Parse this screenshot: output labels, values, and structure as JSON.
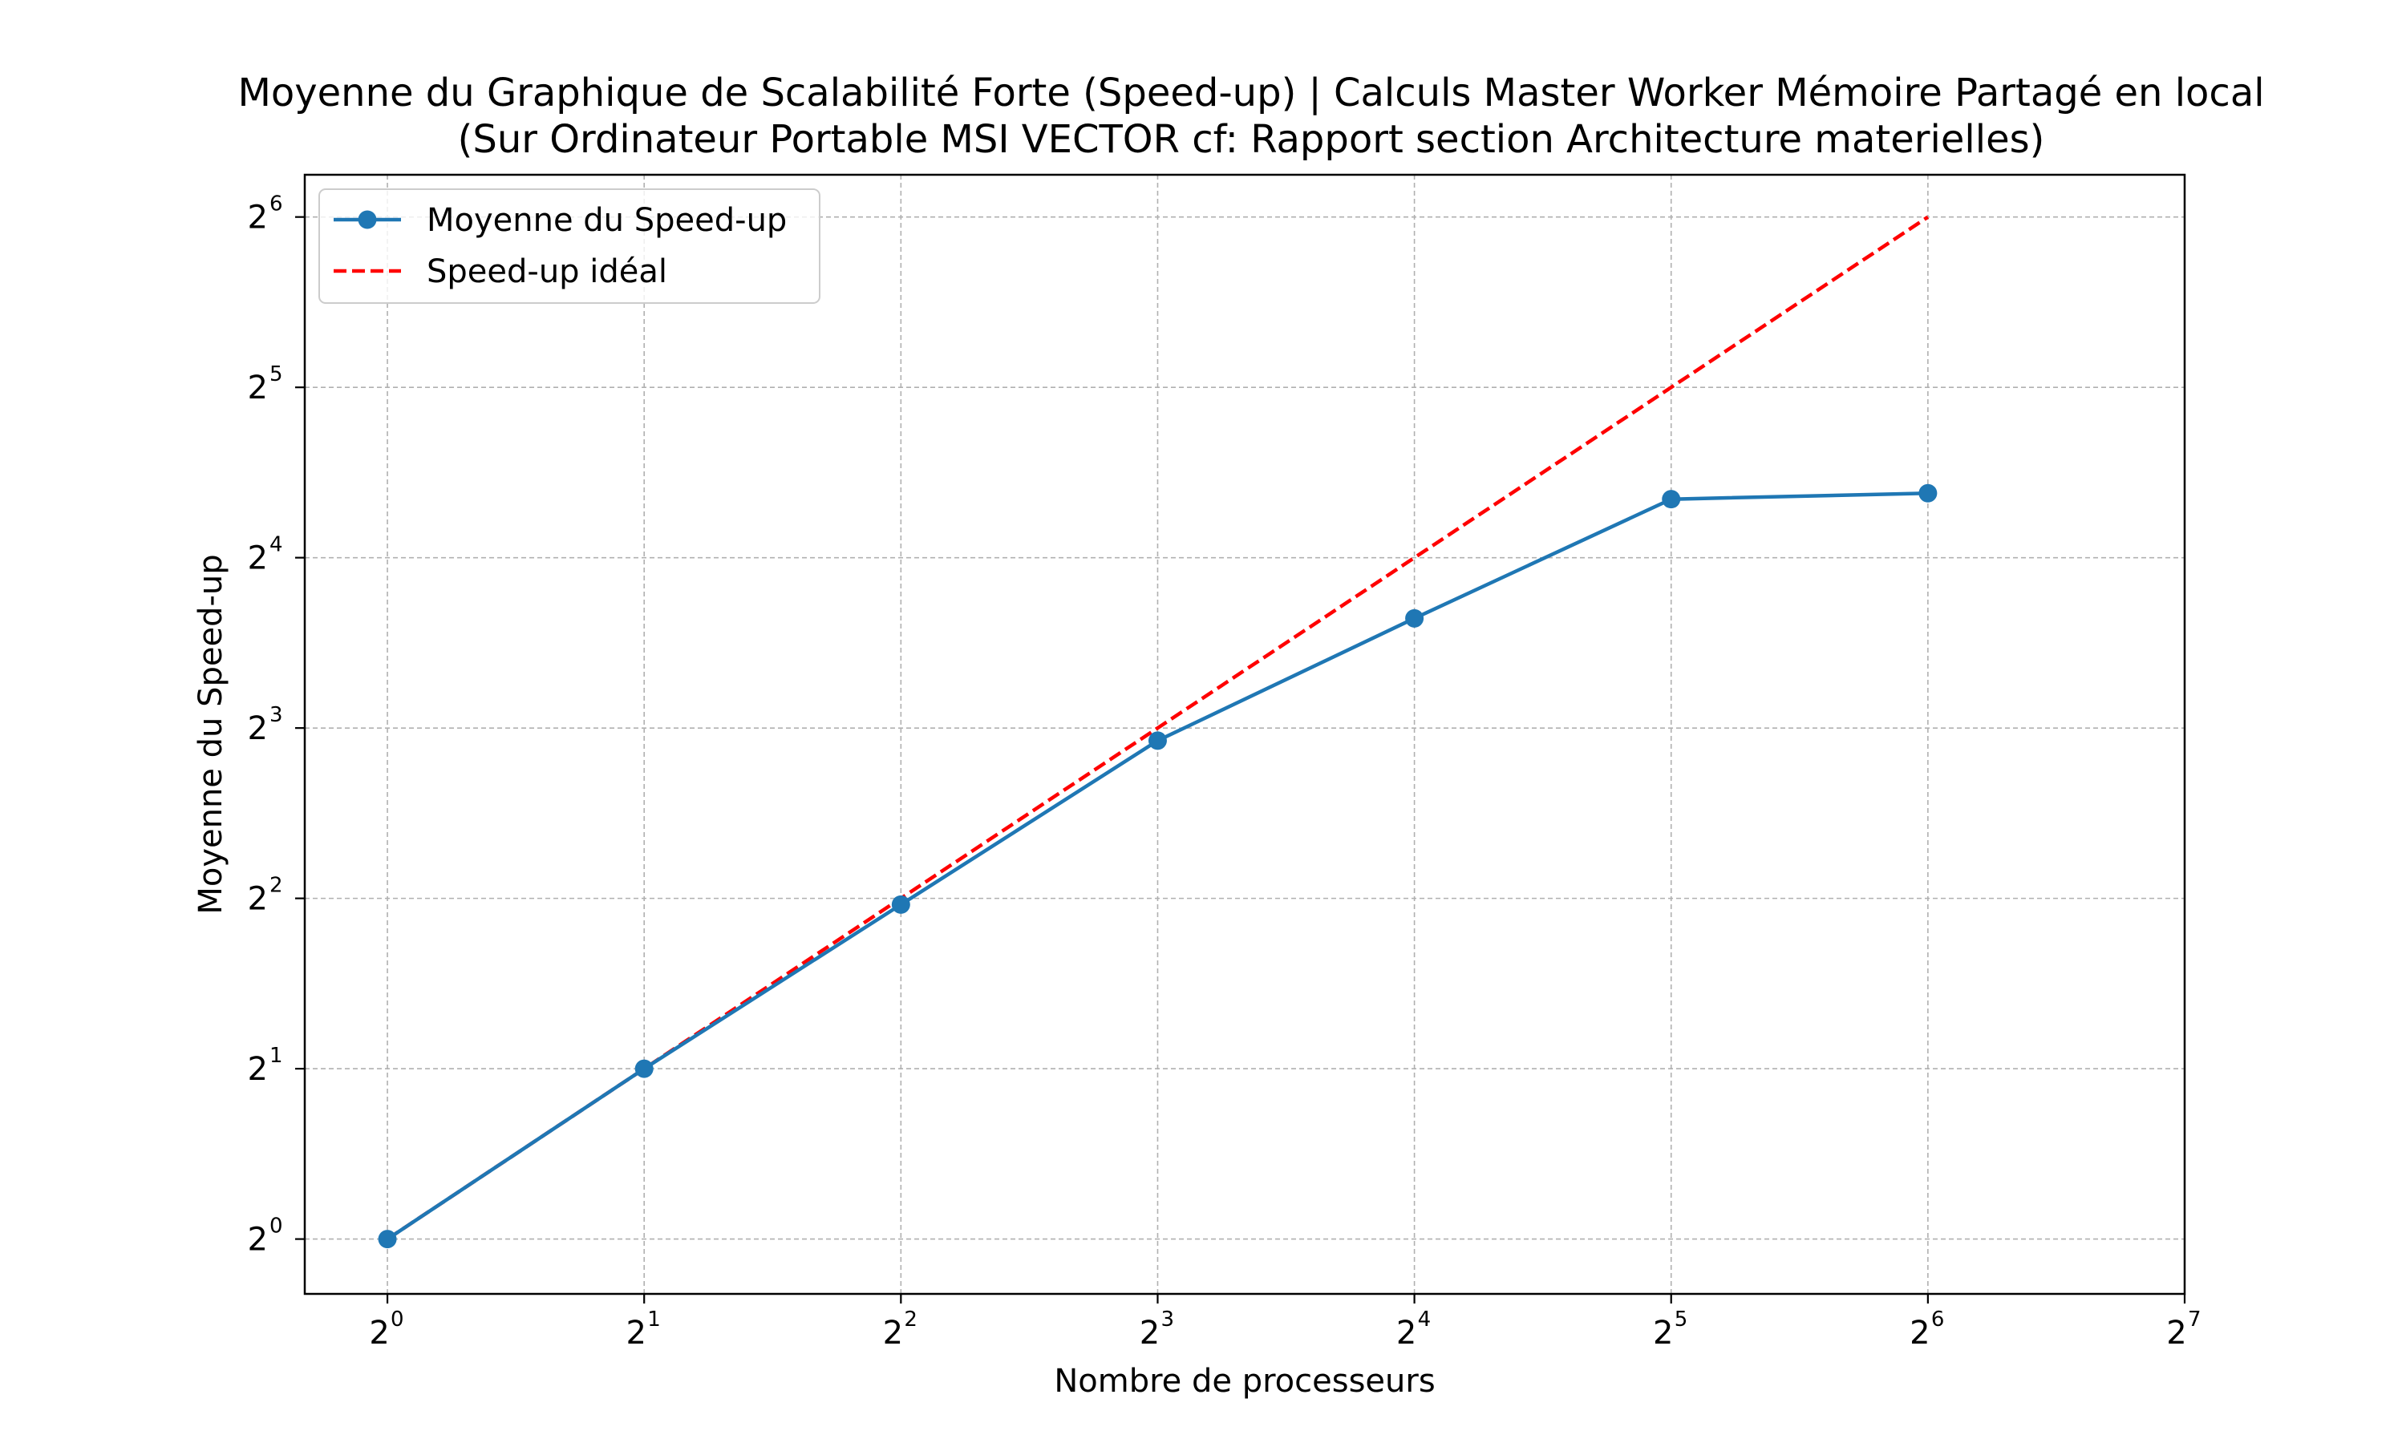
{
  "chart_data": {
    "type": "line",
    "title": "Moyenne du Graphique de Scalabilité Forte (Speed-up) | Calculs Master Worker Mémoire Partagé en local",
    "subtitle": "(Sur Ordinateur Portable MSI VECTOR cf: Rapport section Architecture materielles)",
    "xlabel": "Nombre de processeurs",
    "ylabel": "Moyenne du Speed-up",
    "x_scale": "log2",
    "y_scale": "log2",
    "xlim": [
      0.8,
      128
    ],
    "ylim": [
      0.8,
      76
    ],
    "x_ticks": [
      {
        "value": 1,
        "base": "2",
        "exp": "0"
      },
      {
        "value": 2,
        "base": "2",
        "exp": "1"
      },
      {
        "value": 4,
        "base": "2",
        "exp": "2"
      },
      {
        "value": 8,
        "base": "2",
        "exp": "3"
      },
      {
        "value": 16,
        "base": "2",
        "exp": "4"
      },
      {
        "value": 32,
        "base": "2",
        "exp": "5"
      },
      {
        "value": 64,
        "base": "2",
        "exp": "6"
      },
      {
        "value": 128,
        "base": "2",
        "exp": "7"
      }
    ],
    "y_ticks": [
      {
        "value": 1,
        "base": "2",
        "exp": "0"
      },
      {
        "value": 2,
        "base": "2",
        "exp": "1"
      },
      {
        "value": 4,
        "base": "2",
        "exp": "2"
      },
      {
        "value": 8,
        "base": "2",
        "exp": "3"
      },
      {
        "value": 16,
        "base": "2",
        "exp": "4"
      },
      {
        "value": 32,
        "base": "2",
        "exp": "5"
      },
      {
        "value": 64,
        "base": "2",
        "exp": "6"
      }
    ],
    "grid": true,
    "legend_position": "top-left",
    "series": [
      {
        "name": "Moyenne du Speed-up",
        "color": "#1f77b4",
        "style": "solid-with-markers",
        "x": [
          1,
          2,
          4,
          8,
          16,
          32,
          64
        ],
        "y": [
          1.0,
          2.0,
          3.9,
          7.6,
          12.5,
          20.3,
          20.8
        ]
      },
      {
        "name": "Speed-up idéal",
        "color": "#ff0000",
        "style": "dashed",
        "x": [
          1,
          2,
          4,
          8,
          16,
          32,
          64
        ],
        "y": [
          1,
          2,
          4,
          8,
          16,
          32,
          64
        ]
      }
    ]
  }
}
